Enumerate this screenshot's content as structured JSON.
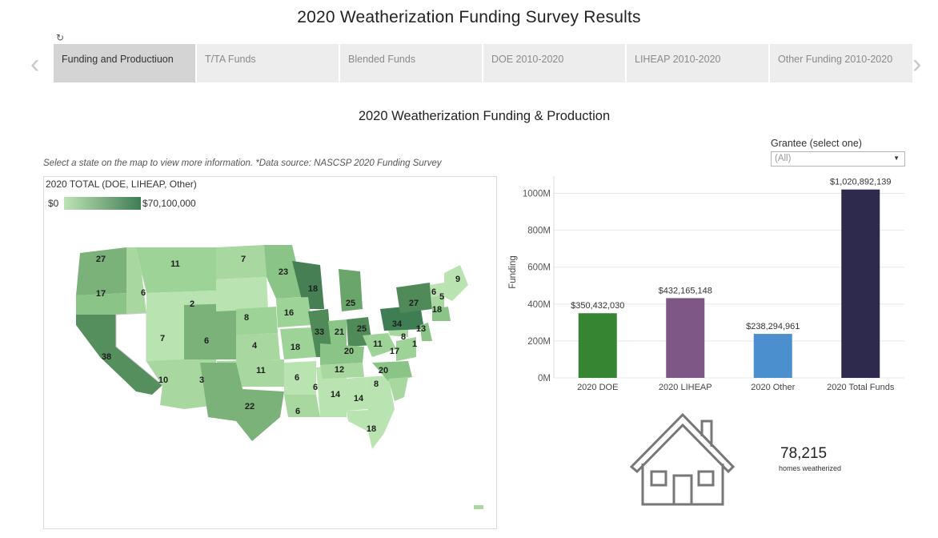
{
  "page": {
    "title": "2020 Weatherization Funding Survey Results"
  },
  "nav": {
    "prev_glyph": "‹",
    "next_glyph": "›",
    "refresh_glyph": "↻"
  },
  "tabs": [
    {
      "label": "Funding and Productiuon",
      "active": true
    },
    {
      "label": "T/TA Funds",
      "active": false
    },
    {
      "label": "Blended Funds",
      "active": false
    },
    {
      "label": "DOE 2010-2020",
      "active": false
    },
    {
      "label": "LIHEAP 2010-2020",
      "active": false
    },
    {
      "label": "Other Funding 2010-2020",
      "active": false
    }
  ],
  "section": {
    "title": "2020 Weatherization Funding & Production",
    "note": "Select a state on the map to view more information. *Data source: NASCSP 2020 Funding Survey"
  },
  "filter": {
    "label": "Grantee (select one)",
    "value": "(All)"
  },
  "map": {
    "legend_title": "2020 TOTAL (DOE, LIHEAP, Other)",
    "legend_min": "$0",
    "legend_max": "$70,100,000",
    "color_low": "#bfe3b4",
    "color_high": "#3f7d55",
    "state_labels": [
      "27",
      "11",
      "7",
      "17",
      "6",
      "23",
      "2",
      "18",
      "9",
      "8",
      "16",
      "25",
      "6",
      "5",
      "27",
      "18",
      "7",
      "6",
      "4",
      "18",
      "33",
      "21",
      "25",
      "34",
      "13",
      "8",
      "11",
      "38",
      "20",
      "1",
      "17",
      "11",
      "12",
      "6",
      "20",
      "10",
      "3",
      "6",
      "8",
      "22",
      "14",
      "14",
      "6",
      "18"
    ]
  },
  "homes": {
    "count": "78,215",
    "label": "homes weatherized"
  },
  "chart_data": {
    "type": "bar",
    "title": "",
    "xlabel": "",
    "ylabel": "Funding",
    "categories": [
      "2020 DOE",
      "2020 LIHEAP",
      "2020 Other",
      "2020 Total Funds"
    ],
    "values": [
      350432030,
      432165148,
      238294961,
      1020892139
    ],
    "value_labels": [
      "$350,432,030",
      "$432,165,148",
      "$238,294,961",
      "$1,020,892,139"
    ],
    "colors": [
      "#368533",
      "#7f5786",
      "#4b8fce",
      "#2d2a4d"
    ],
    "ylim": [
      0,
      1050000000
    ],
    "yticks": [
      0,
      200000000,
      400000000,
      600000000,
      800000000,
      1000000000
    ],
    "ytick_labels": [
      "0M",
      "200M",
      "400M",
      "600M",
      "800M",
      "1000M"
    ],
    "grid": true
  }
}
